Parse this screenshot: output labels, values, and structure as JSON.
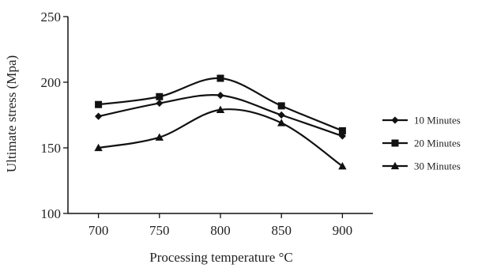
{
  "chart_data": {
    "type": "line",
    "title": "",
    "xlabel": "Processing temperature °C",
    "ylabel": "Ultimate stress (Mpa)",
    "x": [
      700,
      750,
      800,
      850,
      900
    ],
    "x_tick_labels": [
      "700",
      "750",
      "800",
      "850",
      "900"
    ],
    "ylim": [
      100,
      250
    ],
    "y_ticks": [
      100,
      150,
      200,
      250
    ],
    "y_tick_labels": [
      "100",
      "150",
      "200",
      "250"
    ],
    "grid": false,
    "legend_position": "right",
    "smooth": true,
    "series": [
      {
        "name": "10 Minutes",
        "marker": "diamond",
        "color": "#111111",
        "values": [
          174,
          184,
          190,
          175,
          159
        ]
      },
      {
        "name": "20 Minutes",
        "marker": "square",
        "color": "#111111",
        "values": [
          183,
          189,
          203,
          182,
          163
        ]
      },
      {
        "name": "30 Minutes",
        "marker": "triangle",
        "color": "#111111",
        "values": [
          150,
          158,
          179,
          169,
          136
        ]
      }
    ]
  }
}
